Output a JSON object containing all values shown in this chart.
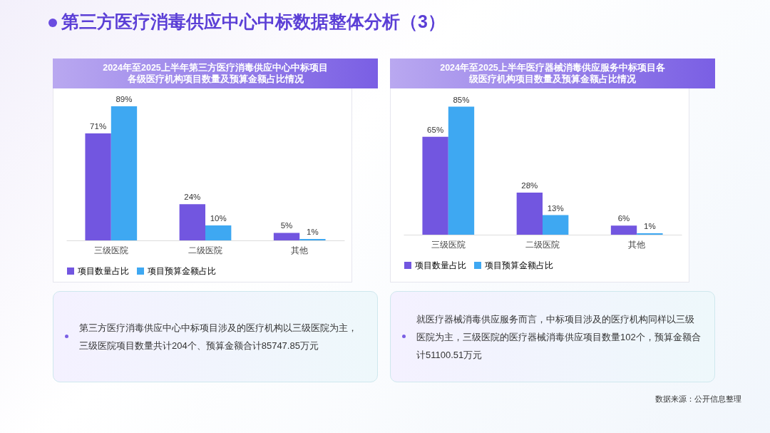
{
  "chart_data": [
    {
      "type": "other",
      "title": "第三方医疗消毒供应中心中标数据整体分析（3）"
    },
    {
      "type": "bar",
      "title": "2024年至2025上半年第三方医疗消毒供应中心中标项目各级医疗机构项目数量及预算金额占比情况",
      "categories": [
        "三级医院",
        "二级医院",
        "其他"
      ],
      "legend": "bottom",
      "series": [
        {
          "name": "项目数量占比",
          "color": "#7256e0",
          "values": [
            71,
            24,
            5
          ],
          "value_labels": [
            "71%",
            "24%",
            "5%"
          ]
        },
        {
          "name": "项目预算金额占比",
          "color": "#3ea8f2",
          "values": [
            89,
            10,
            1
          ],
          "value_labels": [
            "89%",
            "10%",
            "1%"
          ]
        }
      ],
      "annotations": [
        "第三方医疗消毒供应中心中标项目涉及的医疗机构以三级医院为主，三级医院项目数量共计204个、预算金额合计85747.85万元"
      ]
    },
    {
      "type": "bar",
      "title": "2024年至2025上半年医疗器械消毒供应服务中标项目各级医疗机构项目数量及预算金额占比情况",
      "categories": [
        "三级医院",
        "二级医院",
        "其他"
      ],
      "legend": "bottom",
      "series": [
        {
          "name": "项目数量占比",
          "color": "#7256e0",
          "values": [
            65,
            28,
            6
          ],
          "value_labels": [
            "65%",
            "28%",
            "6%"
          ]
        },
        {
          "name": "项目预算金额占比",
          "color": "#3ea8f2",
          "values": [
            85,
            13,
            1
          ],
          "value_labels": [
            "85%",
            "13%",
            "1%"
          ]
        }
      ],
      "annotations": [
        "就医疗器械消毒供应服务而言，中标项目涉及的医疗机构同样以三级医院为主，三级医院的医疗器械消毒供应项目数量102个，预算金额合计51100.51万元"
      ]
    },
    {
      "type": "other",
      "annotations": [
        "数据来源：公开信息整理"
      ]
    }
  ]
}
